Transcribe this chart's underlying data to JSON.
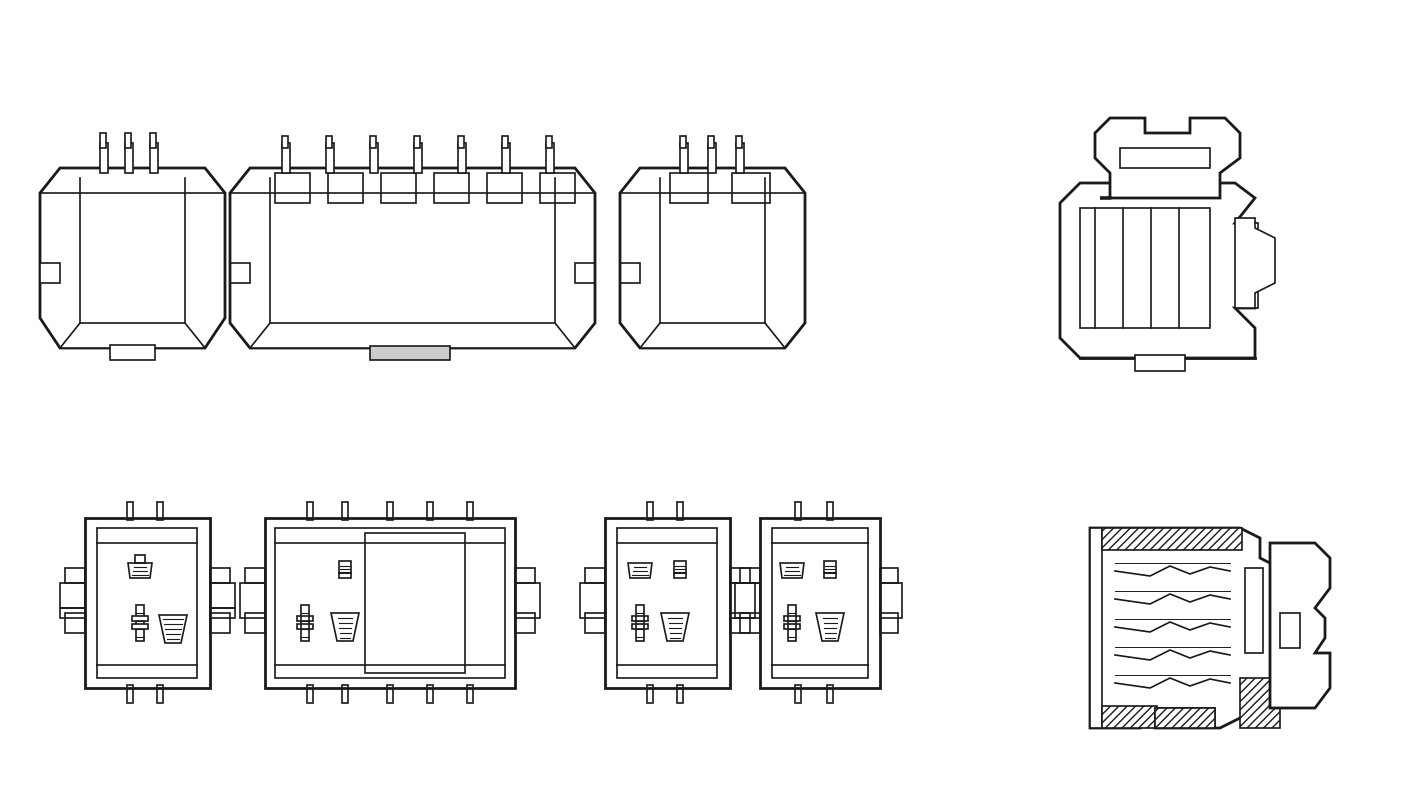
{
  "bg_color": "#ffffff",
  "line_color": "#1a1a1a",
  "hatch_color": "#333333",
  "lw": 1.2,
  "lw_thick": 2.0,
  "fig_width": 14.2,
  "fig_height": 7.98
}
